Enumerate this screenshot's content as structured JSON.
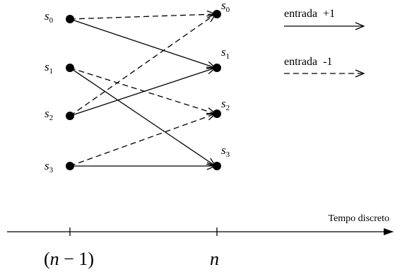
{
  "left_states": [
    {
      "symbol": "s",
      "index": "0"
    },
    {
      "symbol": "s",
      "index": "1"
    },
    {
      "symbol": "s",
      "index": "2"
    },
    {
      "symbol": "s",
      "index": "3"
    }
  ],
  "right_states": [
    {
      "symbol": "s",
      "index": "0"
    },
    {
      "symbol": "s",
      "index": "1"
    },
    {
      "symbol": "s",
      "index": "2"
    },
    {
      "symbol": "s",
      "index": "3"
    }
  ],
  "transitions": [
    {
      "from": 0,
      "to": 0,
      "input": "-1"
    },
    {
      "from": 0,
      "to": 1,
      "input": "+1"
    },
    {
      "from": 1,
      "to": 2,
      "input": "-1"
    },
    {
      "from": 1,
      "to": 3,
      "input": "+1"
    },
    {
      "from": 2,
      "to": 0,
      "input": "-1"
    },
    {
      "from": 2,
      "to": 1,
      "input": "+1"
    },
    {
      "from": 3,
      "to": 2,
      "input": "-1"
    },
    {
      "from": 3,
      "to": 3,
      "input": "+1"
    }
  ],
  "legend": {
    "solid_label": "entrada  +1",
    "dashed_label": "entrada  -1"
  },
  "axis": {
    "label": "Tempo discreto",
    "tick_left_open": "(",
    "tick_left_var": "n",
    "tick_left_rest": " − 1",
    "tick_left_close": ")",
    "tick_right_var": "n"
  }
}
